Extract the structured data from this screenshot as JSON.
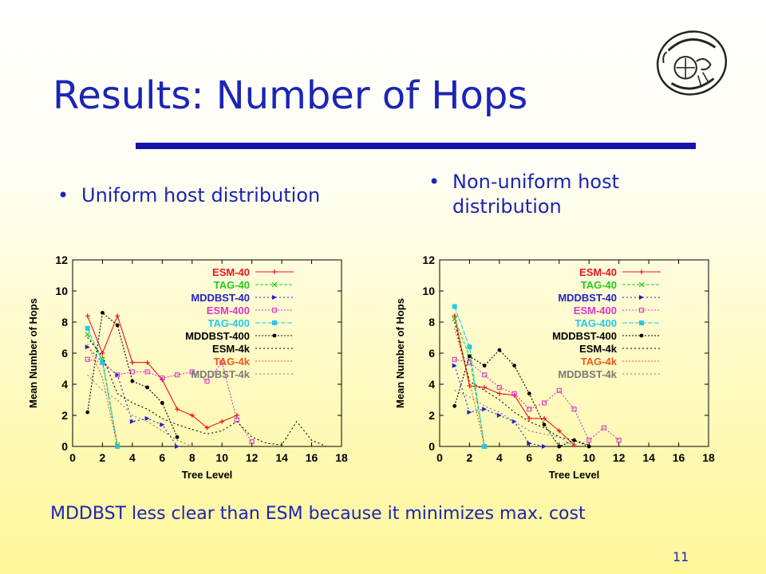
{
  "slide": {
    "title": "Results: Number of Hops",
    "bullets": [
      "Uniform host distribution",
      "Non-uniform host distribution"
    ],
    "bullet_glyph": "•",
    "footer": "MDDBST less clear than ESM because it minimizes max. cost",
    "page_number": "11",
    "title_color": "#1b25b4",
    "rule_color": "#1414a8"
  },
  "chart_data": [
    {
      "type": "line",
      "title": "",
      "xlabel": "Tree Level",
      "ylabel": "Mean Number of Hops",
      "xlim": [
        0,
        18
      ],
      "ylim": [
        0,
        12
      ],
      "xticks": [
        0,
        2,
        4,
        6,
        8,
        10,
        12,
        14,
        16,
        18
      ],
      "yticks": [
        0,
        2,
        4,
        6,
        8,
        10,
        12
      ],
      "grid": false,
      "legend_position": "top-right",
      "series": [
        {
          "name": "ESM-40",
          "color": "#e8141e",
          "dash": "",
          "marker": "plus",
          "x": [
            1,
            2,
            3,
            4,
            5,
            6,
            7,
            8,
            9,
            10,
            11
          ],
          "y": [
            8.4,
            6.0,
            8.4,
            5.4,
            5.4,
            4.3,
            2.4,
            2.0,
            1.2,
            1.6,
            2.0
          ]
        },
        {
          "name": "TAG-40",
          "color": "#27c81d",
          "dash": "4,2",
          "marker": "cross",
          "x": [
            1,
            2,
            3
          ],
          "y": [
            7.2,
            5.6,
            0.1
          ]
        },
        {
          "name": "MDDBST-40",
          "color": "#1e23c8",
          "dash": "2,3",
          "marker": "arrow",
          "x": [
            1,
            2,
            3,
            4,
            5,
            6,
            7
          ],
          "y": [
            6.4,
            5.4,
            4.6,
            1.6,
            1.8,
            1.4,
            0.0
          ]
        },
        {
          "name": "ESM-400",
          "color": "#d936c8",
          "dash": "2,2",
          "marker": "square",
          "x": [
            1,
            2,
            3,
            4,
            5,
            6,
            7,
            8,
            9,
            10,
            11,
            12
          ],
          "y": [
            5.6,
            5.4,
            4.6,
            4.8,
            4.8,
            4.4,
            4.6,
            4.8,
            4.2,
            5.4,
            1.7,
            0.3
          ]
        },
        {
          "name": "TAG-400",
          "color": "#24c8e8",
          "dash": "6,2",
          "marker": "filled-square",
          "x": [
            1,
            2,
            3
          ],
          "y": [
            7.6,
            5.4,
            0.0
          ]
        },
        {
          "name": "MDDBST-400",
          "color": "#000000",
          "dash": "2,2",
          "marker": "dot",
          "x": [
            1,
            2,
            3,
            4,
            5,
            6,
            7
          ],
          "y": [
            2.2,
            8.6,
            7.8,
            4.2,
            3.8,
            2.8,
            0.6
          ]
        },
        {
          "name": "ESM-4k",
          "color": "#000000",
          "dash": "2,3",
          "marker": "",
          "x": [
            1,
            2,
            3,
            4,
            5,
            6,
            7,
            8,
            9,
            10,
            11,
            12,
            13,
            14,
            15,
            16,
            17
          ],
          "y": [
            7.0,
            5.8,
            3.4,
            2.8,
            2.4,
            1.8,
            1.4,
            1.1,
            0.8,
            1.0,
            1.6,
            0.6,
            0.2,
            0.1,
            1.6,
            0.4,
            0.0
          ]
        },
        {
          "name": "TAG-4k",
          "color": "#ee5a14",
          "dash": "2,2",
          "marker": "",
          "x": [
            1,
            2,
            3
          ],
          "y": [
            6.6,
            4.4,
            0.0
          ]
        },
        {
          "name": "MDDBST-4k",
          "color": "#7a7a7a",
          "dash": "2,3",
          "marker": "",
          "x": [
            1,
            2,
            3,
            4,
            5,
            6,
            7,
            8
          ],
          "y": [
            4.6,
            3.6,
            3.0,
            2.0,
            1.6,
            1.0,
            0.4,
            0.0
          ]
        }
      ]
    },
    {
      "type": "line",
      "title": "",
      "xlabel": "Tree Level",
      "ylabel": "Mean Number of Hops",
      "xlim": [
        0,
        18
      ],
      "ylim": [
        0,
        12
      ],
      "xticks": [
        0,
        2,
        4,
        6,
        8,
        10,
        12,
        14,
        16,
        18
      ],
      "yticks": [
        0,
        2,
        4,
        6,
        8,
        10,
        12
      ],
      "grid": false,
      "legend_position": "top-right",
      "series": [
        {
          "name": "ESM-40",
          "color": "#e8141e",
          "dash": "",
          "marker": "plus",
          "x": [
            1,
            2,
            3,
            4,
            5,
            6,
            7,
            8,
            9
          ],
          "y": [
            8.4,
            3.9,
            3.8,
            3.4,
            3.3,
            1.8,
            1.8,
            1.0,
            0.1
          ]
        },
        {
          "name": "TAG-40",
          "color": "#27c81d",
          "dash": "4,2",
          "marker": "cross",
          "x": [
            1,
            2,
            3
          ],
          "y": [
            8.2,
            5.8,
            0.0
          ]
        },
        {
          "name": "MDDBST-40",
          "color": "#1e23c8",
          "dash": "2,3",
          "marker": "arrow",
          "x": [
            1,
            2,
            3,
            4,
            5,
            6,
            7
          ],
          "y": [
            5.2,
            2.2,
            2.4,
            2.0,
            1.6,
            0.2,
            0.0
          ]
        },
        {
          "name": "ESM-400",
          "color": "#d936c8",
          "dash": "2,2",
          "marker": "square",
          "x": [
            1,
            2,
            3,
            4,
            5,
            6,
            7,
            8,
            9,
            10,
            11,
            12
          ],
          "y": [
            5.6,
            5.4,
            4.6,
            3.8,
            3.4,
            2.4,
            2.8,
            3.6,
            2.4,
            0.4,
            1.2,
            0.4
          ]
        },
        {
          "name": "TAG-400",
          "color": "#24c8e8",
          "dash": "6,2",
          "marker": "filled-square",
          "x": [
            1,
            2,
            3
          ],
          "y": [
            9.0,
            6.4,
            0.0
          ]
        },
        {
          "name": "MDDBST-400",
          "color": "#000000",
          "dash": "2,2",
          "marker": "dot",
          "x": [
            1,
            2,
            3,
            4,
            5,
            6,
            7,
            8,
            9,
            10
          ],
          "y": [
            2.6,
            5.8,
            5.2,
            6.2,
            5.2,
            3.4,
            1.4,
            0.0,
            0.4,
            0.0
          ]
        },
        {
          "name": "ESM-4k",
          "color": "#000000",
          "dash": "2,3",
          "marker": "",
          "x": [
            1,
            2,
            3,
            4,
            5,
            6,
            7,
            8,
            9,
            10
          ],
          "y": [
            8.0,
            4.2,
            3.6,
            3.0,
            2.2,
            1.6,
            1.2,
            0.6,
            0.4,
            0.1
          ]
        },
        {
          "name": "TAG-4k",
          "color": "#ee5a14",
          "dash": "2,2",
          "marker": "",
          "x": [
            1,
            2,
            3
          ],
          "y": [
            7.6,
            4.2,
            0.0
          ]
        },
        {
          "name": "MDDBST-4k",
          "color": "#7a7a7a",
          "dash": "2,3",
          "marker": "",
          "x": [
            1,
            2,
            3,
            4,
            5,
            6,
            7,
            8,
            9
          ],
          "y": [
            3.6,
            3.2,
            2.6,
            2.2,
            1.6,
            1.0,
            0.8,
            0.6,
            0.0
          ]
        }
      ]
    }
  ]
}
